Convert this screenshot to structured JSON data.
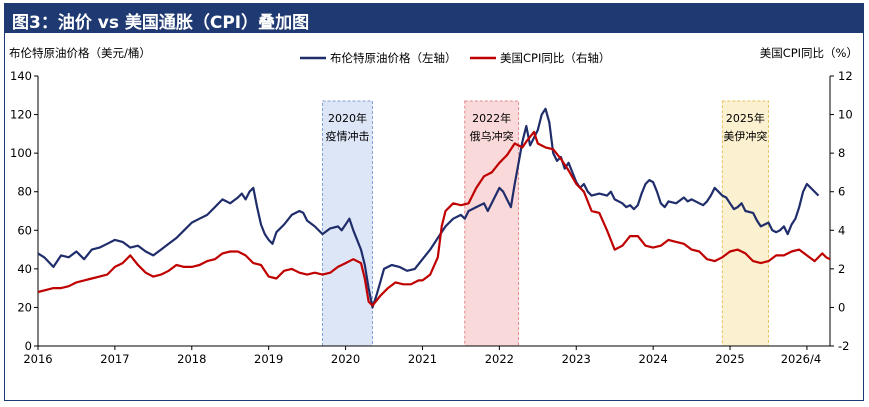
{
  "title": "图3：油价 vs 美国通胀（CPI）叠加图",
  "chart_data": {
    "type": "line",
    "left_axis_label": "布伦特原油价格（美元/桶）",
    "right_axis_label": "美国CPI同比（%）",
    "left_ylim": [
      0,
      140
    ],
    "left_ticks": [
      0,
      20,
      40,
      60,
      80,
      100,
      120,
      140
    ],
    "right_ylim": [
      -2,
      12
    ],
    "right_ticks": [
      -2,
      0,
      2,
      4,
      6,
      8,
      10,
      12
    ],
    "x_tick_labels": [
      "2016",
      "2017",
      "2018",
      "2019",
      "2020",
      "2021",
      "2022",
      "2023",
      "2024",
      "2025",
      "2026/4"
    ],
    "x_ticks": [
      2016,
      2017,
      2018,
      2019,
      2020,
      2021,
      2022,
      2023,
      2024,
      2025,
      2026
    ],
    "xlim": [
      2016,
      2026.3
    ],
    "legend": {
      "position": "top-center"
    },
    "series": [
      {
        "name": "布伦特原油价格（左轴）",
        "axis": "left",
        "color": "#1f2d6b",
        "points": [
          [
            2016.0,
            48
          ],
          [
            2016.08,
            46
          ],
          [
            2016.2,
            41
          ],
          [
            2016.3,
            47
          ],
          [
            2016.4,
            46
          ],
          [
            2016.5,
            49
          ],
          [
            2016.6,
            45
          ],
          [
            2016.7,
            50
          ],
          [
            2016.8,
            51
          ],
          [
            2016.9,
            53
          ],
          [
            2017.0,
            55
          ],
          [
            2017.1,
            54
          ],
          [
            2017.2,
            51
          ],
          [
            2017.3,
            52
          ],
          [
            2017.4,
            49
          ],
          [
            2017.5,
            47
          ],
          [
            2017.6,
            50
          ],
          [
            2017.7,
            53
          ],
          [
            2017.8,
            56
          ],
          [
            2017.9,
            60
          ],
          [
            2018.0,
            64
          ],
          [
            2018.1,
            66
          ],
          [
            2018.2,
            68
          ],
          [
            2018.3,
            72
          ],
          [
            2018.4,
            76
          ],
          [
            2018.5,
            74
          ],
          [
            2018.6,
            77
          ],
          [
            2018.65,
            79
          ],
          [
            2018.7,
            76
          ],
          [
            2018.75,
            80
          ],
          [
            2018.8,
            82
          ],
          [
            2018.85,
            72
          ],
          [
            2018.9,
            63
          ],
          [
            2018.95,
            58
          ],
          [
            2019.0,
            55
          ],
          [
            2019.05,
            53
          ],
          [
            2019.1,
            59
          ],
          [
            2019.2,
            63
          ],
          [
            2019.3,
            68
          ],
          [
            2019.4,
            70
          ],
          [
            2019.45,
            69
          ],
          [
            2019.5,
            65
          ],
          [
            2019.6,
            62
          ],
          [
            2019.7,
            58
          ],
          [
            2019.8,
            61
          ],
          [
            2019.9,
            62
          ],
          [
            2019.95,
            60
          ],
          [
            2020.0,
            63
          ],
          [
            2020.05,
            66
          ],
          [
            2020.1,
            60
          ],
          [
            2020.2,
            50
          ],
          [
            2020.25,
            42
          ],
          [
            2020.3,
            30
          ],
          [
            2020.35,
            20
          ],
          [
            2020.4,
            26
          ],
          [
            2020.45,
            33
          ],
          [
            2020.5,
            40
          ],
          [
            2020.6,
            42
          ],
          [
            2020.7,
            41
          ],
          [
            2020.8,
            39
          ],
          [
            2020.9,
            40
          ],
          [
            2021.0,
            45
          ],
          [
            2021.1,
            50
          ],
          [
            2021.2,
            56
          ],
          [
            2021.3,
            62
          ],
          [
            2021.4,
            66
          ],
          [
            2021.5,
            68
          ],
          [
            2021.55,
            66
          ],
          [
            2021.6,
            70
          ],
          [
            2021.7,
            72
          ],
          [
            2021.8,
            74
          ],
          [
            2021.85,
            70
          ],
          [
            2021.9,
            74
          ],
          [
            2021.95,
            78
          ],
          [
            2022.0,
            82
          ],
          [
            2022.05,
            80
          ],
          [
            2022.1,
            76
          ],
          [
            2022.15,
            72
          ],
          [
            2022.2,
            84
          ],
          [
            2022.25,
            95
          ],
          [
            2022.3,
            106
          ],
          [
            2022.35,
            114
          ],
          [
            2022.4,
            104
          ],
          [
            2022.45,
            108
          ],
          [
            2022.5,
            112
          ],
          [
            2022.55,
            120
          ],
          [
            2022.6,
            123
          ],
          [
            2022.65,
            116
          ],
          [
            2022.7,
            100
          ],
          [
            2022.75,
            96
          ],
          [
            2022.8,
            98
          ],
          [
            2022.85,
            92
          ],
          [
            2022.9,
            95
          ],
          [
            2022.95,
            90
          ],
          [
            2023.0,
            85
          ],
          [
            2023.05,
            82
          ],
          [
            2023.1,
            84
          ],
          [
            2023.15,
            80
          ],
          [
            2023.2,
            78
          ],
          [
            2023.3,
            79
          ],
          [
            2023.4,
            78
          ],
          [
            2023.45,
            80
          ],
          [
            2023.5,
            76
          ],
          [
            2023.6,
            74
          ],
          [
            2023.65,
            72
          ],
          [
            2023.7,
            73
          ],
          [
            2023.75,
            71
          ],
          [
            2023.8,
            73
          ],
          [
            2023.85,
            79
          ],
          [
            2023.9,
            84
          ],
          [
            2023.95,
            86
          ],
          [
            2024.0,
            85
          ],
          [
            2024.05,
            80
          ],
          [
            2024.1,
            74
          ],
          [
            2024.15,
            72
          ],
          [
            2024.2,
            75
          ],
          [
            2024.3,
            74
          ],
          [
            2024.4,
            77
          ],
          [
            2024.45,
            75
          ],
          [
            2024.5,
            76
          ],
          [
            2024.6,
            74
          ],
          [
            2024.65,
            73
          ],
          [
            2024.7,
            75
          ],
          [
            2024.75,
            78
          ],
          [
            2024.8,
            82
          ],
          [
            2024.85,
            80
          ],
          [
            2024.9,
            78
          ],
          [
            2024.95,
            77
          ],
          [
            2025.0,
            74
          ],
          [
            2025.05,
            71
          ],
          [
            2025.1,
            72
          ],
          [
            2025.15,
            74
          ],
          [
            2025.2,
            70
          ],
          [
            2025.3,
            69
          ],
          [
            2025.35,
            65
          ],
          [
            2025.4,
            62
          ],
          [
            2025.45,
            63
          ],
          [
            2025.5,
            64
          ],
          [
            2025.55,
            60
          ],
          [
            2025.6,
            59
          ],
          [
            2025.65,
            60
          ],
          [
            2025.7,
            62
          ],
          [
            2025.75,
            58
          ],
          [
            2025.8,
            63
          ],
          [
            2025.85,
            66
          ],
          [
            2025.9,
            72
          ],
          [
            2025.95,
            80
          ],
          [
            2026.0,
            84
          ],
          [
            2026.05,
            82
          ],
          [
            2026.15,
            78
          ]
        ]
      },
      {
        "name": "美国CPI同比（右轴）",
        "axis": "right",
        "color": "#c00000",
        "points": [
          [
            2016.0,
            0.8
          ],
          [
            2016.1,
            0.9
          ],
          [
            2016.2,
            1.0
          ],
          [
            2016.3,
            1.0
          ],
          [
            2016.4,
            1.1
          ],
          [
            2016.5,
            1.3
          ],
          [
            2016.6,
            1.4
          ],
          [
            2016.7,
            1.5
          ],
          [
            2016.8,
            1.6
          ],
          [
            2016.9,
            1.7
          ],
          [
            2017.0,
            2.1
          ],
          [
            2017.1,
            2.3
          ],
          [
            2017.2,
            2.7
          ],
          [
            2017.3,
            2.2
          ],
          [
            2017.4,
            1.8
          ],
          [
            2017.5,
            1.6
          ],
          [
            2017.6,
            1.7
          ],
          [
            2017.7,
            1.9
          ],
          [
            2017.8,
            2.2
          ],
          [
            2017.9,
            2.1
          ],
          [
            2018.0,
            2.1
          ],
          [
            2018.1,
            2.2
          ],
          [
            2018.2,
            2.4
          ],
          [
            2018.3,
            2.5
          ],
          [
            2018.4,
            2.8
          ],
          [
            2018.5,
            2.9
          ],
          [
            2018.6,
            2.9
          ],
          [
            2018.7,
            2.7
          ],
          [
            2018.8,
            2.3
          ],
          [
            2018.9,
            2.2
          ],
          [
            2019.0,
            1.6
          ],
          [
            2019.1,
            1.5
          ],
          [
            2019.2,
            1.9
          ],
          [
            2019.3,
            2.0
          ],
          [
            2019.4,
            1.8
          ],
          [
            2019.5,
            1.7
          ],
          [
            2019.6,
            1.8
          ],
          [
            2019.7,
            1.7
          ],
          [
            2019.8,
            1.8
          ],
          [
            2019.9,
            2.1
          ],
          [
            2020.0,
            2.3
          ],
          [
            2020.1,
            2.5
          ],
          [
            2020.2,
            2.3
          ],
          [
            2020.25,
            1.5
          ],
          [
            2020.3,
            0.3
          ],
          [
            2020.35,
            0.1
          ],
          [
            2020.45,
            0.6
          ],
          [
            2020.55,
            1.0
          ],
          [
            2020.65,
            1.3
          ],
          [
            2020.75,
            1.2
          ],
          [
            2020.85,
            1.2
          ],
          [
            2020.95,
            1.4
          ],
          [
            2021.0,
            1.4
          ],
          [
            2021.1,
            1.7
          ],
          [
            2021.2,
            2.6
          ],
          [
            2021.25,
            4.2
          ],
          [
            2021.3,
            5.0
          ],
          [
            2021.4,
            5.4
          ],
          [
            2021.5,
            5.3
          ],
          [
            2021.6,
            5.4
          ],
          [
            2021.7,
            6.2
          ],
          [
            2021.8,
            6.8
          ],
          [
            2021.9,
            7.0
          ],
          [
            2022.0,
            7.5
          ],
          [
            2022.1,
            7.9
          ],
          [
            2022.2,
            8.5
          ],
          [
            2022.3,
            8.3
          ],
          [
            2022.35,
            8.6
          ],
          [
            2022.45,
            9.1
          ],
          [
            2022.5,
            8.5
          ],
          [
            2022.6,
            8.3
          ],
          [
            2022.7,
            8.2
          ],
          [
            2022.8,
            7.7
          ],
          [
            2022.9,
            7.1
          ],
          [
            2023.0,
            6.4
          ],
          [
            2023.1,
            6.0
          ],
          [
            2023.2,
            5.0
          ],
          [
            2023.3,
            4.9
          ],
          [
            2023.4,
            4.0
          ],
          [
            2023.5,
            3.0
          ],
          [
            2023.6,
            3.2
          ],
          [
            2023.7,
            3.7
          ],
          [
            2023.8,
            3.7
          ],
          [
            2023.9,
            3.2
          ],
          [
            2024.0,
            3.1
          ],
          [
            2024.1,
            3.2
          ],
          [
            2024.2,
            3.5
          ],
          [
            2024.3,
            3.4
          ],
          [
            2024.4,
            3.3
          ],
          [
            2024.5,
            3.0
          ],
          [
            2024.6,
            2.9
          ],
          [
            2024.7,
            2.5
          ],
          [
            2024.8,
            2.4
          ],
          [
            2024.9,
            2.6
          ],
          [
            2025.0,
            2.9
          ],
          [
            2025.1,
            3.0
          ],
          [
            2025.2,
            2.8
          ],
          [
            2025.3,
            2.4
          ],
          [
            2025.4,
            2.3
          ],
          [
            2025.5,
            2.4
          ],
          [
            2025.6,
            2.7
          ],
          [
            2025.7,
            2.7
          ],
          [
            2025.8,
            2.9
          ],
          [
            2025.9,
            3.0
          ],
          [
            2026.0,
            2.7
          ],
          [
            2026.1,
            2.4
          ],
          [
            2026.2,
            2.8
          ],
          [
            2026.25,
            2.6
          ],
          [
            2026.3,
            2.5
          ]
        ]
      }
    ],
    "shaded_regions": [
      {
        "label_year": "2020年",
        "label_event": "疫情冲击",
        "x_start": 2019.7,
        "x_end": 2020.35,
        "fill": "#dde6f7",
        "stroke": "#7f9fd6"
      },
      {
        "label_year": "2022年",
        "label_event": "俄乌冲突",
        "x_start": 2021.55,
        "x_end": 2022.25,
        "fill": "#f9d9d9",
        "stroke": "#e08a8a"
      },
      {
        "label_year": "2025年",
        "label_event": "美伊冲突",
        "x_start": 2024.9,
        "x_end": 2025.5,
        "fill": "#fbf0cf",
        "stroke": "#e6c35c"
      }
    ]
  }
}
